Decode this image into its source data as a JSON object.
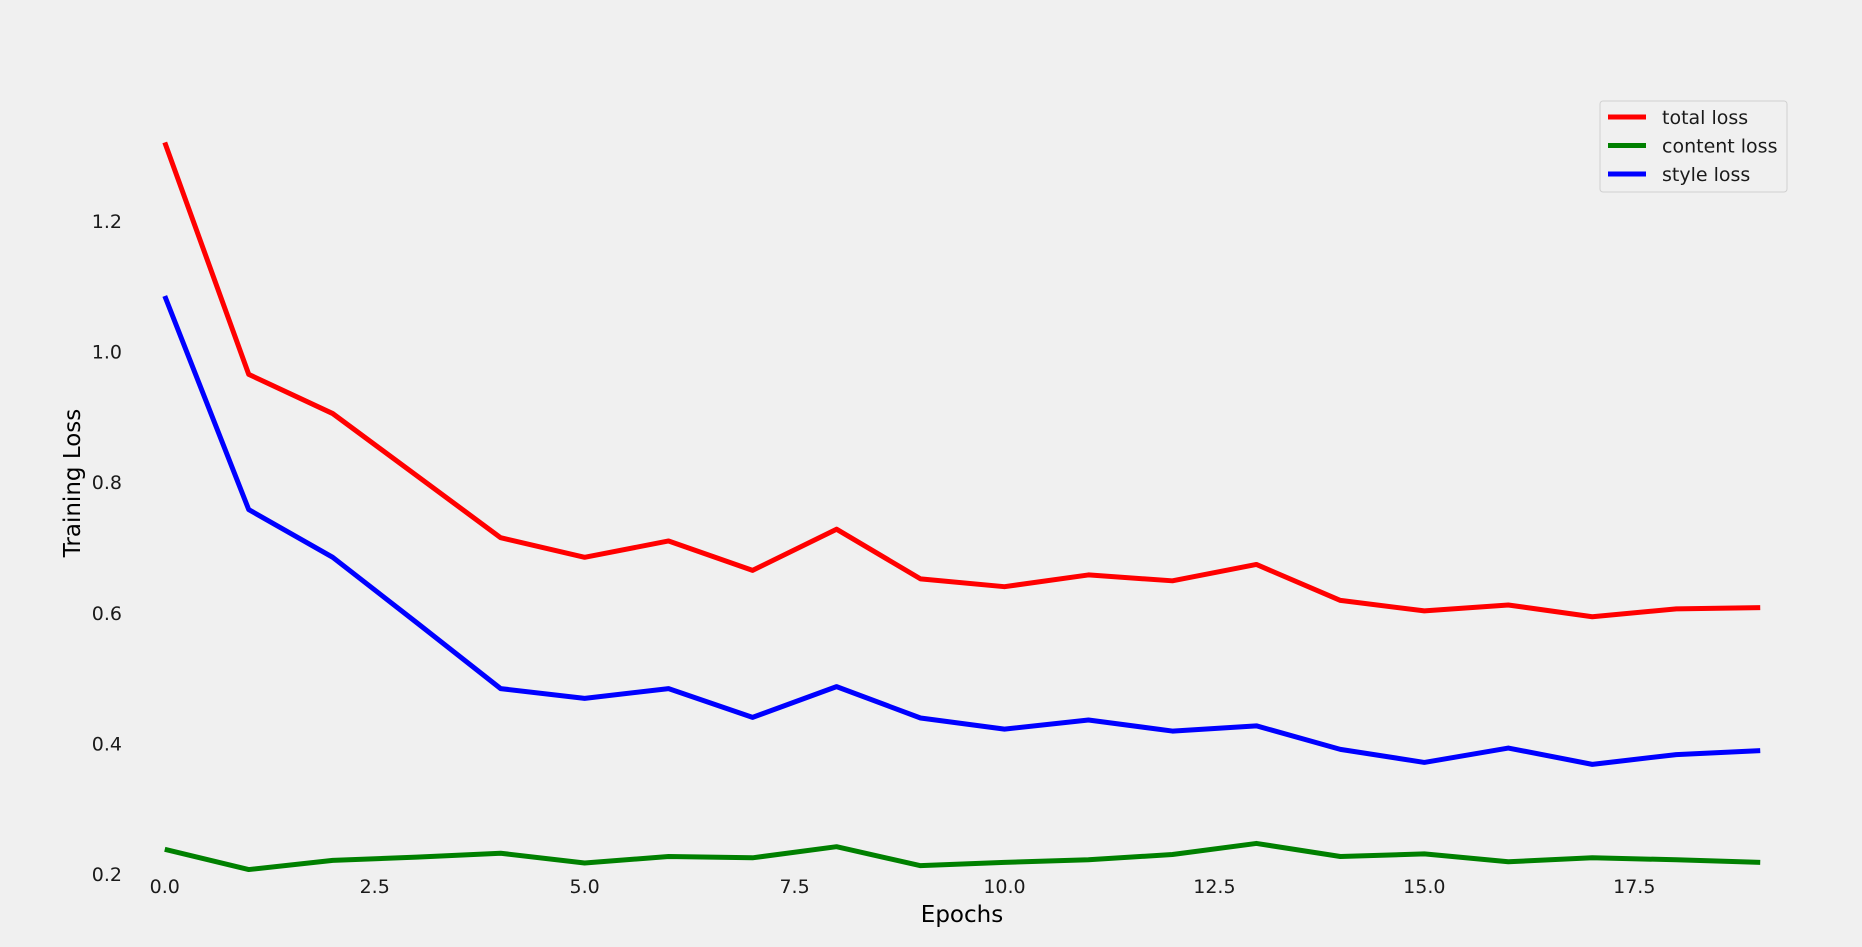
{
  "chart_data": {
    "type": "line",
    "title": "",
    "xlabel": "Epochs",
    "ylabel": "Training Loss",
    "xlim": [
      -0.95,
      19.95
    ],
    "ylim": [
      0.165,
      1.385
    ],
    "x_ticks": [
      0.0,
      2.5,
      5.0,
      7.5,
      10.0,
      12.5,
      15.0,
      17.5
    ],
    "x_tick_labels": [
      "0.0",
      "2.5",
      "5.0",
      "7.5",
      "10.0",
      "12.5",
      "15.0",
      "17.5"
    ],
    "y_ticks": [
      0.2,
      0.4,
      0.6,
      0.8,
      1.0,
      1.2
    ],
    "y_tick_labels": [
      "0.2",
      "0.4",
      "0.6",
      "0.8",
      "1.0",
      "1.2"
    ],
    "grid": false,
    "legend_position": "top-right",
    "x": [
      0,
      1,
      2,
      3,
      4,
      5,
      6,
      7,
      8,
      9,
      10,
      11,
      12,
      13,
      14,
      15,
      16,
      17,
      18,
      19
    ],
    "series": [
      {
        "name": "total loss",
        "color": "#ff0000",
        "values": [
          1.32,
          0.965,
          0.905,
          0.81,
          0.715,
          0.685,
          0.71,
          0.665,
          0.728,
          0.652,
          0.64,
          0.658,
          0.649,
          0.674,
          0.619,
          0.603,
          0.612,
          0.594,
          0.606,
          0.608
        ]
      },
      {
        "name": "content loss",
        "color": "#008000",
        "values": [
          0.238,
          0.207,
          0.221,
          0.226,
          0.232,
          0.217,
          0.227,
          0.225,
          0.242,
          0.213,
          0.218,
          0.222,
          0.23,
          0.247,
          0.227,
          0.231,
          0.219,
          0.225,
          0.222,
          0.218
        ]
      },
      {
        "name": "style loss",
        "color": "#0000ff",
        "values": [
          1.085,
          0.758,
          0.685,
          0.585,
          0.484,
          0.469,
          0.484,
          0.44,
          0.487,
          0.439,
          0.422,
          0.436,
          0.419,
          0.427,
          0.391,
          0.371,
          0.393,
          0.368,
          0.383,
          0.389
        ]
      }
    ]
  }
}
